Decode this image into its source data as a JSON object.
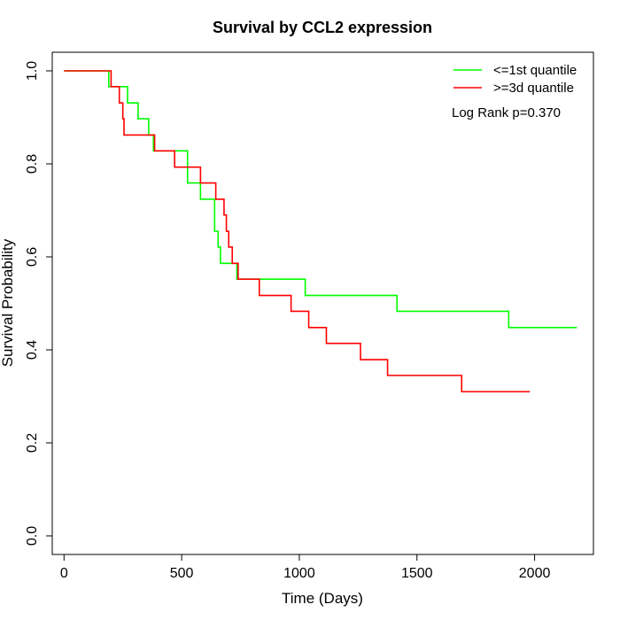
{
  "chart_data": {
    "type": "line",
    "title": "Survival by CCL2 expression",
    "xlabel": "Time (Days)",
    "ylabel": "Survival Probability",
    "xlim": [
      -50,
      2250
    ],
    "ylim": [
      -0.04,
      1.04
    ],
    "xticks": [
      0,
      500,
      1000,
      1500,
      2000
    ],
    "yticks": [
      0.0,
      0.2,
      0.4,
      0.6,
      0.8,
      1.0
    ],
    "ytick_labels": [
      "0.0",
      "0.2",
      "0.4",
      "0.6",
      "0.8",
      "1.0"
    ],
    "grid": false,
    "legend_position": "top-right",
    "annotation": "Log Rank p=0.370",
    "series": [
      {
        "name": "<=1st quantile",
        "color": "#00ff00",
        "x": [
          0,
          190,
          270,
          315,
          360,
          380,
          525,
          580,
          640,
          655,
          665,
          735,
          1025,
          1415,
          1890,
          2180
        ],
        "y": [
          1.0,
          0.966,
          0.931,
          0.897,
          0.862,
          0.828,
          0.759,
          0.724,
          0.655,
          0.621,
          0.586,
          0.552,
          0.517,
          0.483,
          0.448,
          0.448
        ]
      },
      {
        "name": ">=3d quantile",
        "color": "#ff0000",
        "x": [
          0,
          200,
          235,
          250,
          255,
          385,
          470,
          580,
          645,
          680,
          690,
          700,
          715,
          740,
          830,
          965,
          1040,
          1115,
          1260,
          1375,
          1690,
          1980
        ],
        "y": [
          1.0,
          0.966,
          0.931,
          0.897,
          0.862,
          0.828,
          0.793,
          0.759,
          0.724,
          0.69,
          0.655,
          0.621,
          0.586,
          0.552,
          0.517,
          0.483,
          0.448,
          0.414,
          0.379,
          0.345,
          0.31,
          0.31
        ]
      }
    ]
  }
}
